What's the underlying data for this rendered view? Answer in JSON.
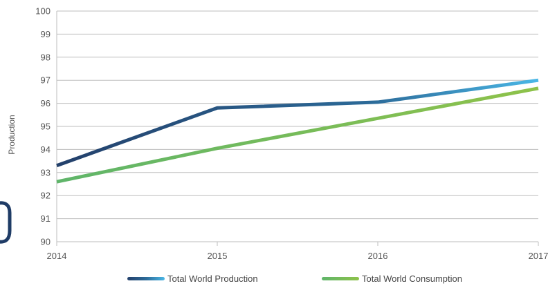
{
  "chart_data": {
    "type": "line",
    "x": [
      2014,
      2015,
      2016,
      2017
    ],
    "series": [
      {
        "name": "Total World Production",
        "values": [
          93.3,
          95.8,
          96.05,
          97.0
        ]
      },
      {
        "name": "Total World Consumption",
        "values": [
          92.6,
          94.05,
          95.35,
          96.65
        ]
      }
    ],
    "title": "",
    "xlabel": "",
    "ylabel": "Production",
    "xlim": [
      2014,
      2017
    ],
    "ylim": [
      90,
      100
    ],
    "yticks": [
      90,
      91,
      92,
      93,
      94,
      95,
      96,
      97,
      98,
      99,
      100
    ],
    "xticks": [
      "2014",
      "2015",
      "2016",
      "2017"
    ],
    "grid": true,
    "legend_position": "bottom"
  },
  "colors": {
    "production_start": "#23406b",
    "production_mid": "#2c6a98",
    "production_end": "#4ab7e6",
    "consumption_start": "#5fb56a",
    "consumption_end": "#8ec24a",
    "grid": "#bdbdbd"
  }
}
